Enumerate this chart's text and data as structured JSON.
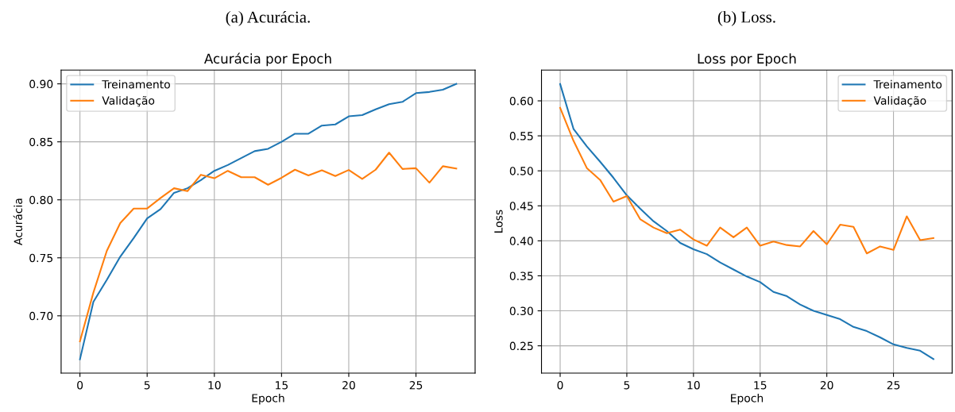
{
  "chart_data": [
    {
      "type": "line",
      "title": "Acurácia por Epoch",
      "xlabel": "Epoch",
      "ylabel": "Acurácia",
      "annotations": [
        "(a) Acurácia."
      ],
      "x": [
        0,
        1,
        2,
        3,
        4,
        5,
        6,
        7,
        8,
        9,
        10,
        11,
        12,
        13,
        14,
        15,
        16,
        17,
        18,
        19,
        20,
        21,
        22,
        23,
        24,
        25,
        26,
        27,
        28
      ],
      "series": [
        {
          "name": "Treinamento",
          "color": "#1f77b4",
          "values": [
            0.6625,
            0.712,
            0.731,
            0.751,
            0.767,
            0.784,
            0.792,
            0.806,
            0.81,
            0.817,
            0.825,
            0.83,
            0.836,
            0.842,
            0.844,
            0.85,
            0.857,
            0.857,
            0.864,
            0.865,
            0.872,
            0.873,
            0.878,
            0.8825,
            0.8845,
            0.892,
            0.893,
            0.895,
            0.9
          ]
        },
        {
          "name": "Validação",
          "color": "#ff7f0e",
          "values": [
            0.678,
            0.72,
            0.756,
            0.78,
            0.7925,
            0.7925,
            0.8016,
            0.81,
            0.8075,
            0.8216,
            0.8186,
            0.825,
            0.8195,
            0.8195,
            0.813,
            0.819,
            0.826,
            0.821,
            0.8255,
            0.8205,
            0.8257,
            0.818,
            0.826,
            0.8407,
            0.8266,
            0.8273,
            0.8148,
            0.829,
            0.827
          ]
        }
      ],
      "xlim": [
        -1.4,
        29.4
      ],
      "xticks": [
        0,
        5,
        10,
        15,
        20,
        25
      ],
      "ylim": [
        0.6506,
        0.9119
      ],
      "yticks": [
        {
          "value": 0.7,
          "label": "0.70"
        },
        0.75,
        {
          "value": 0.8,
          "label": "0.80"
        },
        0.85,
        {
          "value": 0.9,
          "label": "0.90"
        }
      ],
      "grid": true,
      "legend": "top left",
      "marker": "none",
      "line_style": "solid"
    },
    {
      "type": "line",
      "title": "Loss por Epoch",
      "xlabel": "Epoch",
      "ylabel": "Loss",
      "annotations": [
        "(b) Loss."
      ],
      "x": [
        0,
        1,
        2,
        3,
        4,
        5,
        6,
        7,
        8,
        9,
        10,
        11,
        12,
        13,
        14,
        15,
        16,
        17,
        18,
        19,
        20,
        21,
        22,
        23,
        24,
        25,
        26,
        27,
        28
      ],
      "series": [
        {
          "name": "Treinamento",
          "color": "#1f77b4",
          "values": [
            0.624,
            0.56,
            0.535,
            0.513,
            0.49,
            0.465,
            0.446,
            0.428,
            0.414,
            0.397,
            0.388,
            0.381,
            0.369,
            0.359,
            0.349,
            0.341,
            0.327,
            0.321,
            0.309,
            0.3,
            0.294,
            0.288,
            0.277,
            0.271,
            0.262,
            0.252,
            0.247,
            0.243,
            0.231
          ]
        },
        {
          "name": "Validação",
          "color": "#ff7f0e",
          "values": [
            0.59,
            0.543,
            0.504,
            0.487,
            0.456,
            0.464,
            0.431,
            0.419,
            0.411,
            0.416,
            0.402,
            0.393,
            0.419,
            0.405,
            0.419,
            0.393,
            0.399,
            0.394,
            0.392,
            0.414,
            0.395,
            0.423,
            0.42,
            0.382,
            0.392,
            0.387,
            0.435,
            0.401,
            0.404
          ]
        }
      ],
      "xlim": [
        -1.4,
        29.4
      ],
      "xticks": [
        0,
        5,
        10,
        15,
        20,
        25
      ],
      "ylim": [
        0.211,
        0.644
      ],
      "yticks": [
        0.25,
        {
          "value": 0.3,
          "label": "0.30"
        },
        0.35,
        {
          "value": 0.4,
          "label": "0.40"
        },
        0.45,
        {
          "value": 0.5,
          "label": "0.50"
        },
        0.55,
        {
          "value": 0.6,
          "label": "0.60"
        }
      ],
      "grid": true,
      "legend": "top right",
      "marker": "none",
      "line_style": "solid"
    }
  ]
}
